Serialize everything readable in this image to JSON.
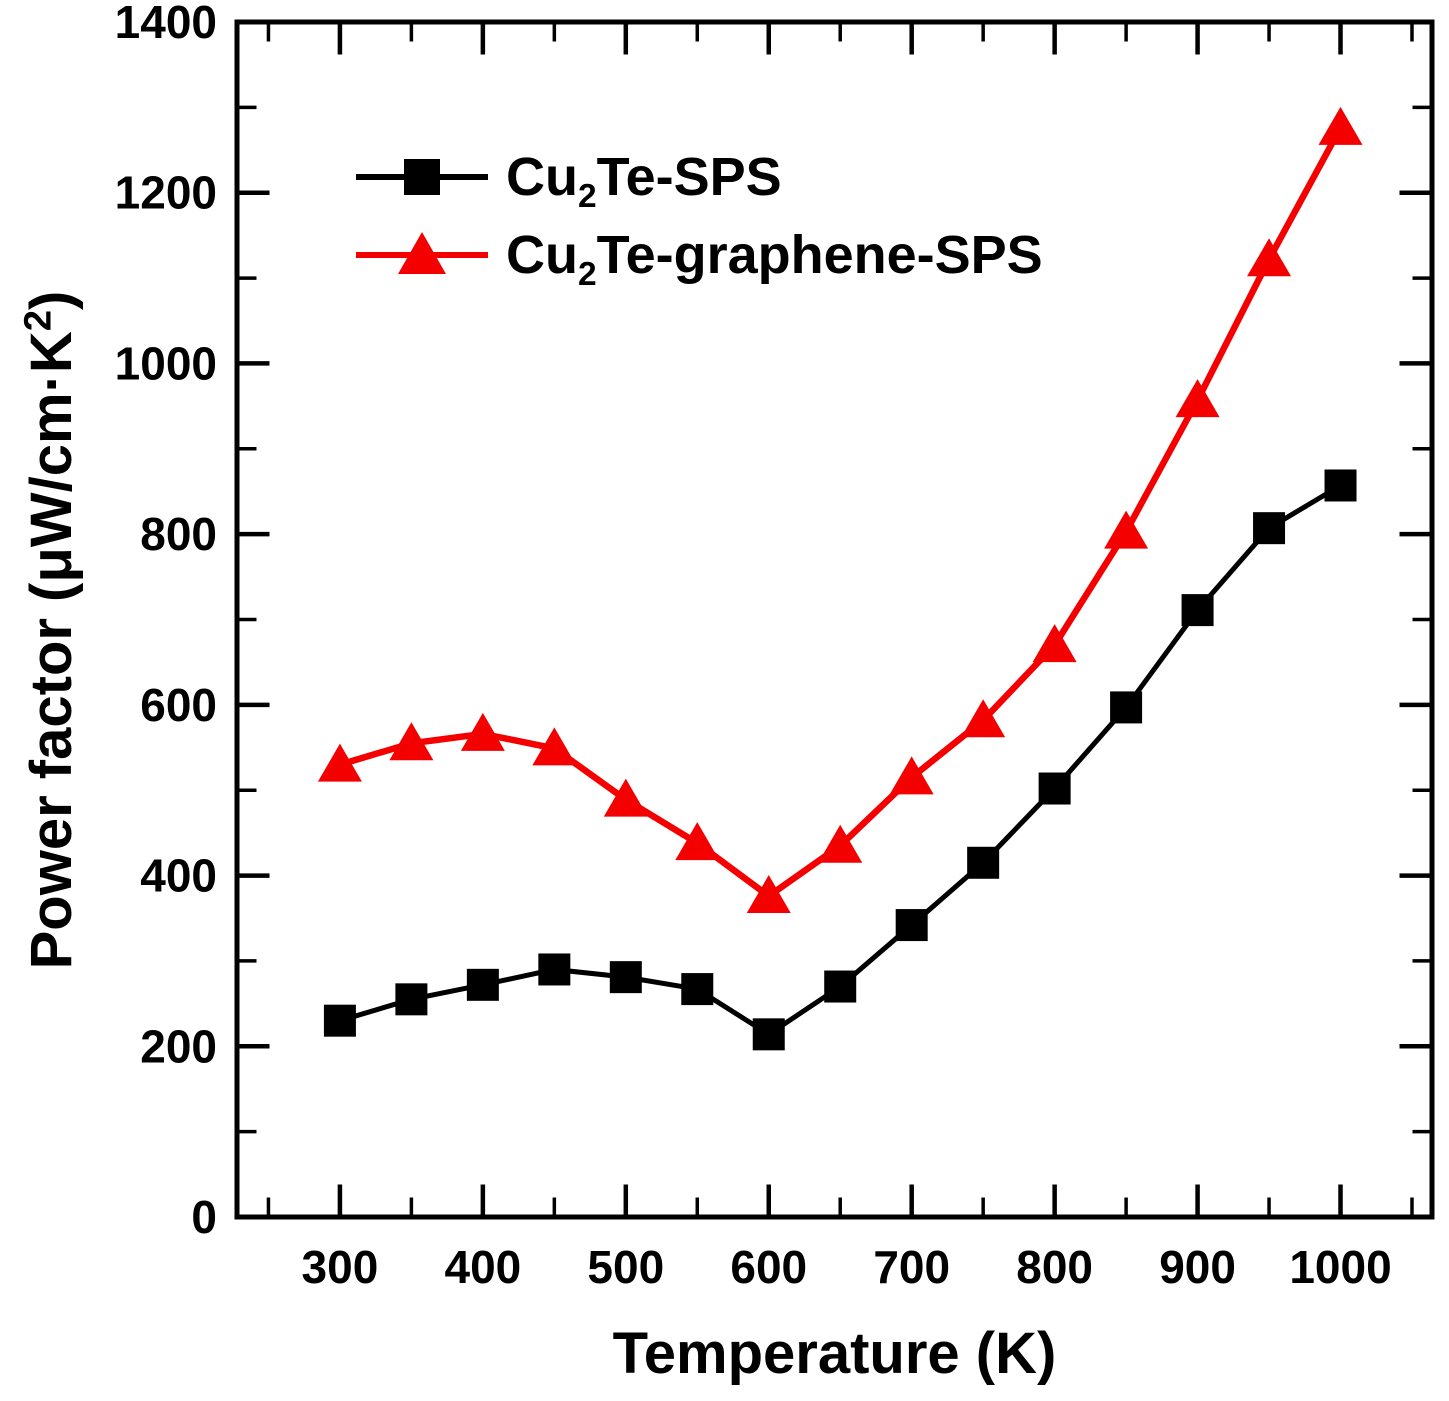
{
  "chart_data": {
    "type": "line",
    "title": "",
    "xlabel": "Temperature (K)",
    "ylabel": "Power factor (μW/cm·K²)",
    "x": [
      300,
      350,
      400,
      450,
      500,
      550,
      600,
      650,
      700,
      750,
      800,
      850,
      900,
      950,
      1000
    ],
    "series": [
      {
        "name": "Cu₂Te-SPS",
        "color": "#000000",
        "marker": "square",
        "values": [
          230,
          255,
          272,
          290,
          281,
          267,
          214,
          270,
          342,
          415,
          502,
          597,
          711,
          807,
          857
        ]
      },
      {
        "name": "Cu₂Te-graphene-SPS",
        "color": "#f40000",
        "marker": "triangle",
        "values": [
          530,
          555,
          566,
          549,
          489,
          438,
          376,
          435,
          515,
          582,
          670,
          803,
          957,
          1122,
          1276
        ]
      }
    ],
    "xlim": [
      228,
      1064
    ],
    "ylim": [
      0,
      1400
    ],
    "x_major_ticks": [
      300,
      400,
      500,
      600,
      700,
      800,
      900,
      1000
    ],
    "x_minor_step": 50,
    "y_major_ticks": [
      0,
      200,
      400,
      600,
      800,
      1000,
      1200,
      1400
    ],
    "y_minor_step": 100,
    "grid": false,
    "legend_position": "upper-left",
    "tick_style": "inward-all-four-sides"
  },
  "legend": [
    {
      "prefix": "Cu",
      "sub": "2",
      "rest": "Te-SPS",
      "marker": "square",
      "color": "#000000"
    },
    {
      "prefix": "Cu",
      "sub": "2",
      "rest": "Te-graphene-SPS",
      "marker": "triangle",
      "color": "#f40000"
    }
  ],
  "axis": {
    "x_title": "Temperature (K)",
    "y_title_main": "Power factor (μW/cm·K",
    "y_title_sup": "2",
    "y_title_close": ")"
  }
}
